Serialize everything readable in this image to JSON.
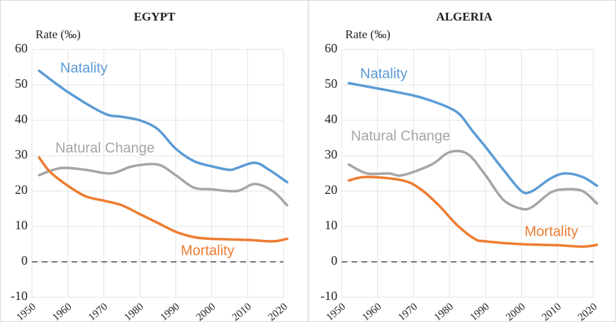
{
  "chart_data": [
    {
      "type": "line",
      "title": "EGYPT",
      "ylabel": "Rate (‰)",
      "xlim": [
        1950,
        2020
      ],
      "xticks": [
        1950,
        1960,
        1970,
        1980,
        1990,
        2000,
        2010,
        2020
      ],
      "ylim": [
        -10,
        60
      ],
      "yticks": [
        -10,
        0,
        10,
        20,
        30,
        40,
        50,
        60
      ],
      "grid": true,
      "hline": 0,
      "series": [
        {
          "name": "Natality",
          "color": "#5b9bd5",
          "x": [
            1952,
            1960,
            1970,
            1975,
            1980,
            1985,
            1990,
            1995,
            2000,
            2005,
            2007,
            2012,
            2016,
            2021
          ],
          "values": [
            54,
            48,
            42,
            41,
            40,
            37.5,
            32,
            28.5,
            27,
            26,
            26.5,
            28,
            26,
            22.5
          ]
        },
        {
          "name": "Natural Change",
          "color": "#a5a5a5",
          "x": [
            1952,
            1958,
            1965,
            1972,
            1978,
            1985,
            1990,
            1995,
            2000,
            2007,
            2012,
            2017,
            2021
          ],
          "values": [
            24.5,
            26.5,
            26,
            25,
            27,
            27.5,
            24.5,
            21,
            20.5,
            20,
            22,
            20,
            16
          ]
        },
        {
          "name": "Mortality",
          "color": "#ed7d31",
          "x": [
            1952,
            1955,
            1960,
            1965,
            1970,
            1975,
            1980,
            1985,
            1990,
            1995,
            2000,
            2010,
            2017,
            2021
          ],
          "values": [
            29.5,
            25.5,
            21.5,
            18.5,
            17.3,
            16,
            13.5,
            11,
            8.5,
            7,
            6.5,
            6.2,
            5.8,
            6.5
          ]
        }
      ]
    },
    {
      "type": "line",
      "title": "ALGERIA",
      "ylabel": "Rate (‰)",
      "xlim": [
        1950,
        2020
      ],
      "xticks": [
        1950,
        1960,
        1970,
        1980,
        1990,
        2000,
        2010,
        2020
      ],
      "ylim": [
        -10,
        60
      ],
      "yticks": [
        -10,
        0,
        10,
        20,
        30,
        40,
        50,
        60
      ],
      "grid": true,
      "hline": 0,
      "series": [
        {
          "name": "Natality",
          "color": "#5b9bd5",
          "x": [
            1952,
            1960,
            1970,
            1975,
            1980,
            1983,
            1986,
            1990,
            1995,
            2000,
            2003,
            2008,
            2012,
            2017,
            2021
          ],
          "values": [
            50.5,
            49,
            47,
            45.5,
            43.5,
            41.5,
            37.5,
            32.5,
            26,
            20,
            20,
            23.5,
            25,
            24,
            21.5
          ]
        },
        {
          "name": "Natural Change",
          "color": "#a5a5a5",
          "x": [
            1952,
            1957,
            1963,
            1967,
            1975,
            1980,
            1985,
            1990,
            1995,
            2000,
            2003,
            2008,
            2012,
            2017,
            2021
          ],
          "values": [
            27.5,
            25,
            25,
            24.5,
            27.5,
            31,
            30.5,
            24.5,
            17.5,
            15,
            15.5,
            19.5,
            20.5,
            20,
            16.5
          ]
        },
        {
          "name": "Mortality",
          "color": "#ed7d31",
          "x": [
            1952,
            1957,
            1967,
            1972,
            1977,
            1982,
            1987,
            1990,
            2000,
            2010,
            2017,
            2021
          ],
          "values": [
            23,
            24,
            23,
            20.5,
            16,
            10.5,
            6.5,
            5.8,
            5,
            4.7,
            4.3,
            4.8
          ]
        }
      ]
    }
  ]
}
